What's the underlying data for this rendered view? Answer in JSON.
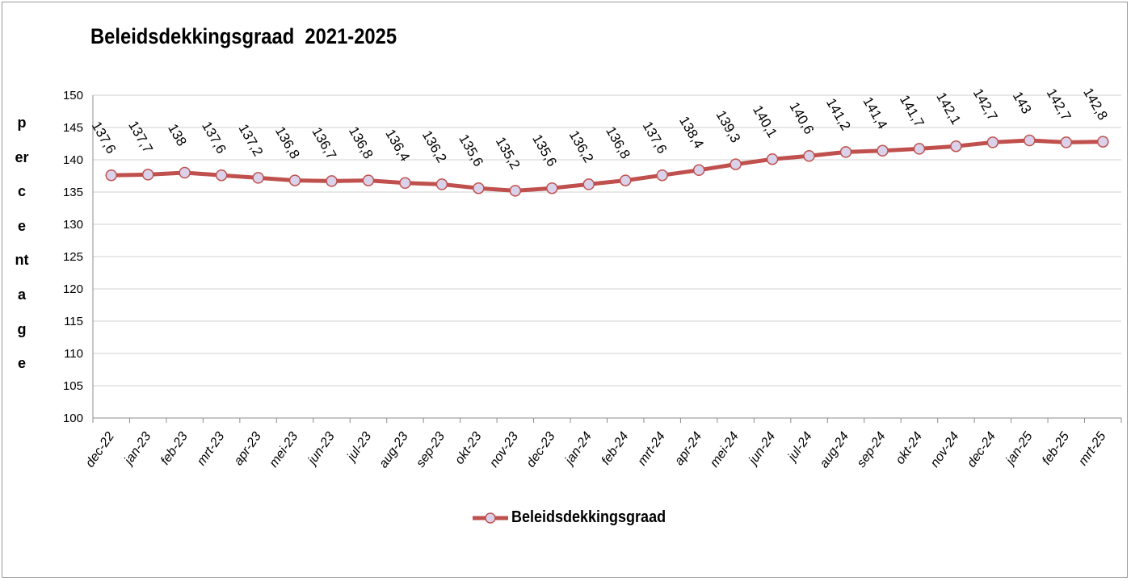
{
  "chart_data": {
    "type": "line",
    "title": "Beleidsdekkingsgraad  2021-2025",
    "ylabel": "percentage",
    "xlabel": "",
    "ylim": [
      100,
      150
    ],
    "ytick_step": 5,
    "grid": true,
    "legend_position": "bottom",
    "categories": [
      "dec-22",
      "jan-23",
      "feb-23",
      "mrt-23",
      "apr-23",
      "mei-23",
      "jun-23",
      "jul-23",
      "aug-23",
      "sep-23",
      "okt-23",
      "nov-23",
      "dec-23",
      "jan-24",
      "feb-24",
      "mrt-24",
      "apr-24",
      "mei-24",
      "jun-24",
      "jul-24",
      "aug-24",
      "sep-24",
      "okt-24",
      "nov-24",
      "dec-24",
      "jan-25",
      "feb-25",
      "mrt-25"
    ],
    "series": [
      {
        "name": "Beleidsdekkingsgraad",
        "color": "#c0504d",
        "marker_color": "#d9d2ea",
        "values": [
          137.6,
          137.7,
          138,
          137.6,
          137.2,
          136.8,
          136.7,
          136.8,
          136.4,
          136.2,
          135.6,
          135.2,
          135.6,
          136.2,
          136.8,
          137.6,
          138.4,
          139.3,
          140.1,
          140.6,
          141.2,
          141.4,
          141.7,
          142.1,
          142.7,
          143,
          142.7,
          142.8
        ],
        "labels": [
          "137,6",
          "137,7",
          "138",
          "137,6",
          "137,2",
          "136,8",
          "136,7",
          "136,8",
          "136,4",
          "136,2",
          "135,6",
          "135,2",
          "135,6",
          "136,2",
          "136,8",
          "137,6",
          "138,4",
          "139,3",
          "140,1",
          "140,6",
          "141,2",
          "141,4",
          "141,7",
          "142,1",
          "142,7",
          "143",
          "142,7",
          "142,8"
        ]
      }
    ]
  }
}
